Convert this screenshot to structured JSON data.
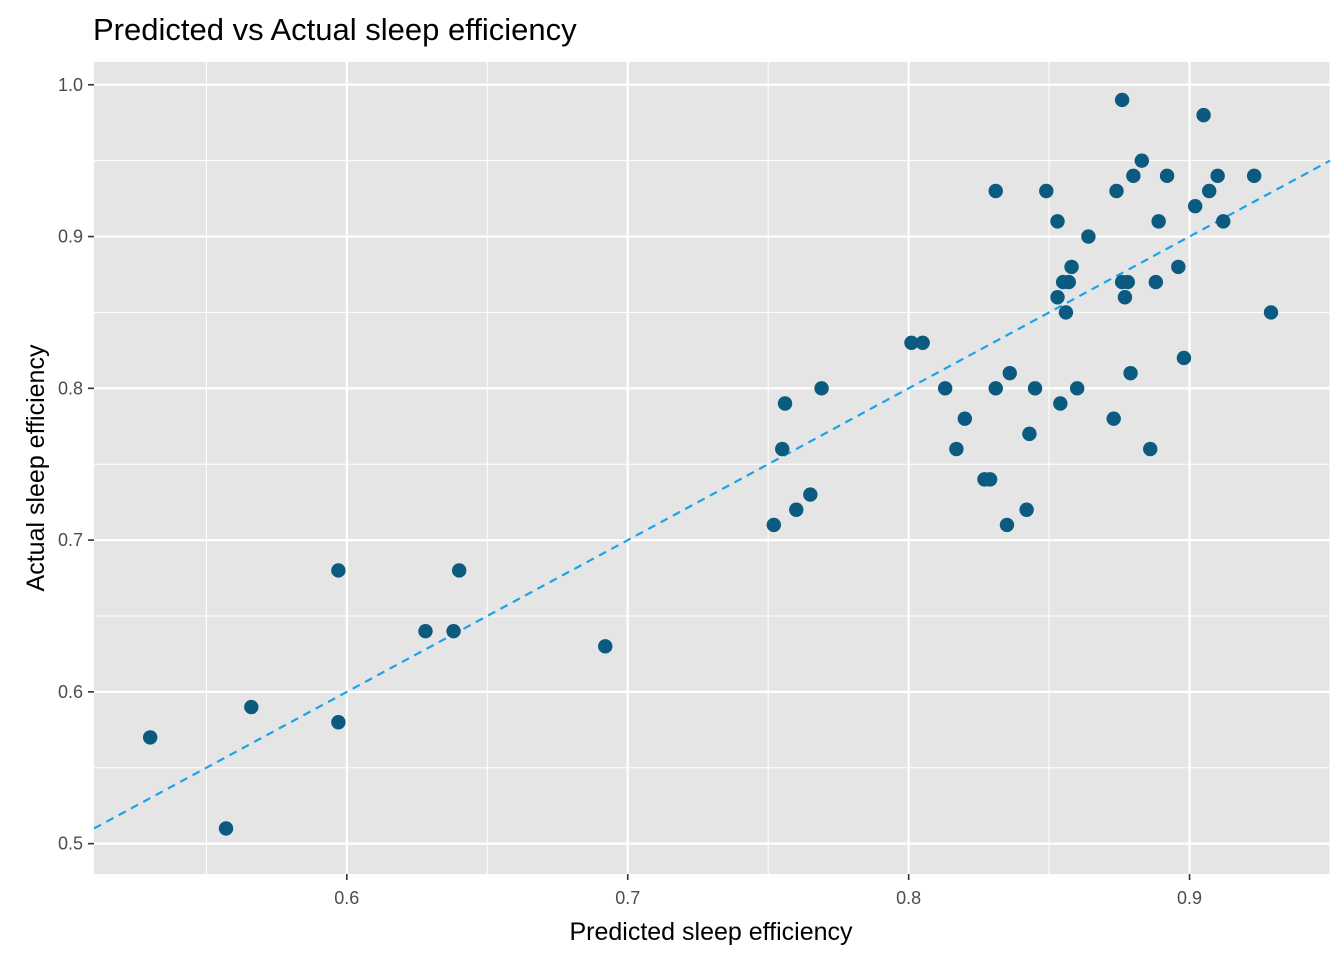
{
  "chart_data": {
    "type": "scatter",
    "title": "Predicted vs Actual sleep efficiency",
    "xlabel": "Predicted sleep efficiency",
    "ylabel": "Actual sleep efficiency",
    "xlim": [
      0.51,
      0.95
    ],
    "ylim": [
      0.48,
      1.015
    ],
    "x_ticks": [
      "0.6",
      "0.7",
      "0.8",
      "0.9"
    ],
    "y_ticks": [
      "0.5",
      "0.6",
      "0.7",
      "0.8",
      "0.9",
      "1.0"
    ],
    "grid": true,
    "reference_line": {
      "slope": 1,
      "intercept": 0,
      "style": "dashed",
      "color": "#1aa3e8"
    },
    "colors": {
      "panel": "#e5e5e5",
      "grid": "#ffffff",
      "point": "#0b5a80",
      "tick_text": "#4d4d4d"
    },
    "points": [
      {
        "x": 0.53,
        "y": 0.57
      },
      {
        "x": 0.557,
        "y": 0.51
      },
      {
        "x": 0.566,
        "y": 0.59
      },
      {
        "x": 0.597,
        "y": 0.68
      },
      {
        "x": 0.597,
        "y": 0.58
      },
      {
        "x": 0.628,
        "y": 0.64
      },
      {
        "x": 0.638,
        "y": 0.64
      },
      {
        "x": 0.64,
        "y": 0.68
      },
      {
        "x": 0.692,
        "y": 0.63
      },
      {
        "x": 0.752,
        "y": 0.71
      },
      {
        "x": 0.755,
        "y": 0.76
      },
      {
        "x": 0.756,
        "y": 0.79
      },
      {
        "x": 0.76,
        "y": 0.72
      },
      {
        "x": 0.765,
        "y": 0.73
      },
      {
        "x": 0.769,
        "y": 0.8
      },
      {
        "x": 0.801,
        "y": 0.83
      },
      {
        "x": 0.805,
        "y": 0.83
      },
      {
        "x": 0.813,
        "y": 0.8
      },
      {
        "x": 0.817,
        "y": 0.76
      },
      {
        "x": 0.82,
        "y": 0.78
      },
      {
        "x": 0.827,
        "y": 0.74
      },
      {
        "x": 0.829,
        "y": 0.74
      },
      {
        "x": 0.831,
        "y": 0.93
      },
      {
        "x": 0.831,
        "y": 0.8
      },
      {
        "x": 0.835,
        "y": 0.71
      },
      {
        "x": 0.836,
        "y": 0.81
      },
      {
        "x": 0.842,
        "y": 0.72
      },
      {
        "x": 0.843,
        "y": 0.77
      },
      {
        "x": 0.845,
        "y": 0.8
      },
      {
        "x": 0.849,
        "y": 0.93
      },
      {
        "x": 0.853,
        "y": 0.91
      },
      {
        "x": 0.853,
        "y": 0.86
      },
      {
        "x": 0.854,
        "y": 0.79
      },
      {
        "x": 0.855,
        "y": 0.87
      },
      {
        "x": 0.856,
        "y": 0.85
      },
      {
        "x": 0.857,
        "y": 0.87
      },
      {
        "x": 0.858,
        "y": 0.88
      },
      {
        "x": 0.86,
        "y": 0.8
      },
      {
        "x": 0.864,
        "y": 0.9
      },
      {
        "x": 0.873,
        "y": 0.78
      },
      {
        "x": 0.874,
        "y": 0.93
      },
      {
        "x": 0.876,
        "y": 0.99
      },
      {
        "x": 0.876,
        "y": 0.87
      },
      {
        "x": 0.877,
        "y": 0.86
      },
      {
        "x": 0.878,
        "y": 0.87
      },
      {
        "x": 0.879,
        "y": 0.81
      },
      {
        "x": 0.88,
        "y": 0.94
      },
      {
        "x": 0.883,
        "y": 0.95
      },
      {
        "x": 0.886,
        "y": 0.76
      },
      {
        "x": 0.888,
        "y": 0.87
      },
      {
        "x": 0.889,
        "y": 0.91
      },
      {
        "x": 0.892,
        "y": 0.94
      },
      {
        "x": 0.896,
        "y": 0.88
      },
      {
        "x": 0.898,
        "y": 0.82
      },
      {
        "x": 0.902,
        "y": 0.92
      },
      {
        "x": 0.905,
        "y": 0.98
      },
      {
        "x": 0.907,
        "y": 0.93
      },
      {
        "x": 0.91,
        "y": 0.94
      },
      {
        "x": 0.912,
        "y": 0.91
      },
      {
        "x": 0.923,
        "y": 0.94
      },
      {
        "x": 0.929,
        "y": 0.85
      }
    ]
  }
}
